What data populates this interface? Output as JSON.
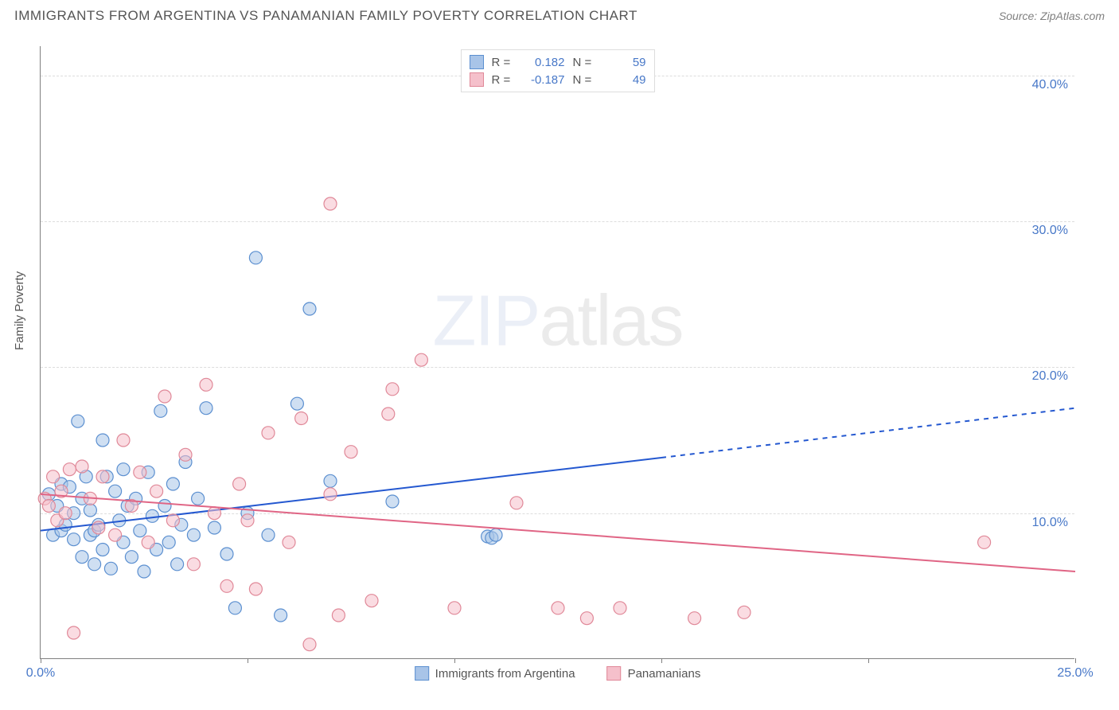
{
  "title": "IMMIGRANTS FROM ARGENTINA VS PANAMANIAN FAMILY POVERTY CORRELATION CHART",
  "source_prefix": "Source: ",
  "source_name": "ZipAtlas.com",
  "watermark": {
    "part1": "ZIP",
    "part2": "atlas"
  },
  "chart": {
    "type": "scatter",
    "y_axis_label": "Family Poverty",
    "xlim": [
      0,
      25
    ],
    "ylim": [
      0,
      42
    ],
    "x_ticks": [
      0,
      5,
      10,
      15,
      20,
      25
    ],
    "x_tick_labels": [
      "0.0%",
      "",
      "",
      "",
      "",
      "25.0%"
    ],
    "y_ticks": [
      10,
      20,
      30,
      40
    ],
    "y_tick_labels": [
      "10.0%",
      "20.0%",
      "30.0%",
      "40.0%"
    ],
    "grid_color": "#dddddd",
    "axis_color": "#808080",
    "tick_label_color": "#4878c8",
    "marker_radius": 8,
    "marker_stroke_width": 1.2,
    "marker_opacity": 0.55,
    "series": [
      {
        "id": "argentina",
        "name": "Immigrants from Argentina",
        "fill": "#a8c4e8",
        "stroke": "#5b8fd0",
        "line_color": "#2458d0",
        "R": "0.182",
        "N": "59",
        "regression": {
          "x1": 0,
          "y1": 8.8,
          "x2": 15,
          "y2": 13.8,
          "dash_x2": 25,
          "dash_y2": 17.2
        },
        "points": [
          [
            0.2,
            11.3
          ],
          [
            0.3,
            8.5
          ],
          [
            0.4,
            10.5
          ],
          [
            0.5,
            12.0
          ],
          [
            0.5,
            8.8
          ],
          [
            0.6,
            9.2
          ],
          [
            0.7,
            11.8
          ],
          [
            0.8,
            10.0
          ],
          [
            0.8,
            8.2
          ],
          [
            0.9,
            16.3
          ],
          [
            1.0,
            11.0
          ],
          [
            1.0,
            7.0
          ],
          [
            1.1,
            12.5
          ],
          [
            1.2,
            8.5
          ],
          [
            1.2,
            10.2
          ],
          [
            1.3,
            6.5
          ],
          [
            1.3,
            8.8
          ],
          [
            1.4,
            9.2
          ],
          [
            1.5,
            15.0
          ],
          [
            1.5,
            7.5
          ],
          [
            1.6,
            12.5
          ],
          [
            1.7,
            6.2
          ],
          [
            1.8,
            11.5
          ],
          [
            1.9,
            9.5
          ],
          [
            2.0,
            13.0
          ],
          [
            2.0,
            8.0
          ],
          [
            2.1,
            10.5
          ],
          [
            2.2,
            7.0
          ],
          [
            2.3,
            11.0
          ],
          [
            2.4,
            8.8
          ],
          [
            2.5,
            6.0
          ],
          [
            2.6,
            12.8
          ],
          [
            2.7,
            9.8
          ],
          [
            2.8,
            7.5
          ],
          [
            2.9,
            17.0
          ],
          [
            3.0,
            10.5
          ],
          [
            3.1,
            8.0
          ],
          [
            3.2,
            12.0
          ],
          [
            3.3,
            6.5
          ],
          [
            3.4,
            9.2
          ],
          [
            3.5,
            13.5
          ],
          [
            3.7,
            8.5
          ],
          [
            3.8,
            11.0
          ],
          [
            4.0,
            17.2
          ],
          [
            4.2,
            9.0
          ],
          [
            4.5,
            7.2
          ],
          [
            4.7,
            3.5
          ],
          [
            5.0,
            10.0
          ],
          [
            5.2,
            27.5
          ],
          [
            5.5,
            8.5
          ],
          [
            5.8,
            3.0
          ],
          [
            6.2,
            17.5
          ],
          [
            6.5,
            24.0
          ],
          [
            7.0,
            12.2
          ],
          [
            8.5,
            10.8
          ],
          [
            10.8,
            8.4
          ],
          [
            10.9,
            8.3
          ],
          [
            11.0,
            8.5
          ]
        ]
      },
      {
        "id": "panamanians",
        "name": "Panamanians",
        "fill": "#f5c0cb",
        "stroke": "#e08898",
        "line_color": "#e06585",
        "R": "-0.187",
        "N": "49",
        "regression": {
          "x1": 0,
          "y1": 11.3,
          "x2": 25,
          "y2": 6.0
        },
        "points": [
          [
            0.1,
            11.0
          ],
          [
            0.2,
            10.5
          ],
          [
            0.3,
            12.5
          ],
          [
            0.4,
            9.5
          ],
          [
            0.5,
            11.5
          ],
          [
            0.6,
            10.0
          ],
          [
            0.7,
            13.0
          ],
          [
            0.8,
            1.8
          ],
          [
            1.0,
            13.2
          ],
          [
            1.2,
            11.0
          ],
          [
            1.4,
            9.0
          ],
          [
            1.5,
            12.5
          ],
          [
            1.8,
            8.5
          ],
          [
            2.0,
            15.0
          ],
          [
            2.2,
            10.5
          ],
          [
            2.4,
            12.8
          ],
          [
            2.6,
            8.0
          ],
          [
            2.8,
            11.5
          ],
          [
            3.0,
            18.0
          ],
          [
            3.2,
            9.5
          ],
          [
            3.5,
            14.0
          ],
          [
            3.7,
            6.5
          ],
          [
            4.0,
            18.8
          ],
          [
            4.2,
            10.0
          ],
          [
            4.5,
            5.0
          ],
          [
            4.8,
            12.0
          ],
          [
            5.0,
            9.5
          ],
          [
            5.2,
            4.8
          ],
          [
            5.5,
            15.5
          ],
          [
            6.0,
            8.0
          ],
          [
            6.3,
            16.5
          ],
          [
            6.5,
            1.0
          ],
          [
            7.0,
            11.3
          ],
          [
            7.0,
            31.2
          ],
          [
            7.2,
            3.0
          ],
          [
            7.5,
            14.2
          ],
          [
            8.0,
            4.0
          ],
          [
            8.4,
            16.8
          ],
          [
            8.5,
            18.5
          ],
          [
            9.2,
            20.5
          ],
          [
            10.0,
            3.5
          ],
          [
            11.5,
            10.7
          ],
          [
            12.5,
            3.5
          ],
          [
            13.2,
            2.8
          ],
          [
            14.0,
            3.5
          ],
          [
            15.8,
            2.8
          ],
          [
            17.0,
            3.2
          ],
          [
            22.8,
            8.0
          ]
        ]
      }
    ],
    "legend_box": {
      "R_label": "R =",
      "N_label": "N ="
    }
  }
}
